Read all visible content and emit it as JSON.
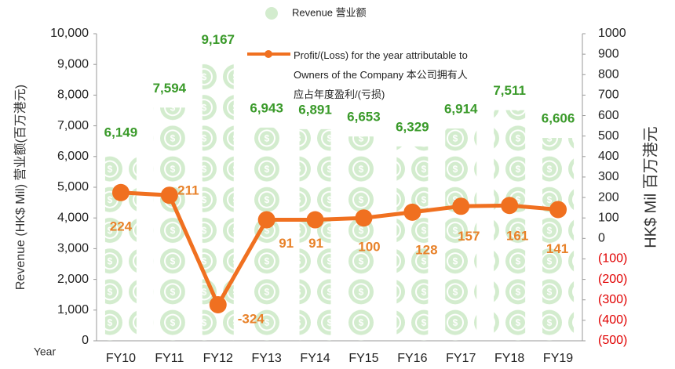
{
  "chart_data": {
    "type": "bar_line",
    "categories": [
      "FY10",
      "FY11",
      "FY12",
      "FY13",
      "FY14",
      "FY15",
      "FY16",
      "FY17",
      "FY18",
      "FY19"
    ],
    "x_label": "Year",
    "y_label": "Revenue (HK$ Mil) 营业额(百万港元)",
    "y2_label": "HK$ Mil 百万港元",
    "ylim": [
      0,
      10000
    ],
    "yticks": [
      0,
      {
        "value": 1000,
        "label": "1,000"
      },
      {
        "value": 2000,
        "label": "2,000"
      },
      {
        "value": 3000,
        "label": "3,000"
      },
      {
        "value": 4000,
        "label": "4,000"
      },
      {
        "value": 5000,
        "label": "5,000"
      },
      {
        "value": 6000,
        "label": "6,000"
      },
      {
        "value": 7000,
        "label": "7,000"
      },
      {
        "value": 8000,
        "label": "8,000"
      },
      {
        "value": 9000,
        "label": "9,000"
      },
      {
        "value": 10000,
        "label": "10,000"
      }
    ],
    "y2lim": [
      -500,
      1000
    ],
    "y2ticks": [
      {
        "value": -500,
        "label": "(500)"
      },
      {
        "value": -400,
        "label": "(400)"
      },
      {
        "value": -300,
        "label": "(300)"
      },
      {
        "value": -200,
        "label": "(200)"
      },
      {
        "value": -100,
        "label": "(100)"
      },
      0,
      100,
      200,
      300,
      400,
      500,
      600,
      700,
      800,
      900,
      1000
    ],
    "negative_tick_color": "#e00000",
    "series": [
      {
        "name": "Revenue 营业额",
        "type": "bar",
        "color": "#c5e3bd",
        "label_color": "#3a9a2a",
        "values": [
          6149,
          7594,
          9167,
          6943,
          6891,
          6653,
          6329,
          6914,
          7511,
          6606
        ],
        "value_labels": [
          "6,149",
          "7,594",
          "9,167",
          "6,943",
          "6,891",
          "6,653",
          "6,329",
          "6,914",
          "7,511",
          "6,606"
        ]
      },
      {
        "name": "Profit/(Loss) for the year attributable to\nOwners of the Company 本公司拥有人\n应占年度盈利/(亏损)",
        "type": "line",
        "axis": "y2",
        "color": "#f07020",
        "label_color": "#e8822a",
        "values": [
          224,
          211,
          -324,
          91,
          91,
          100,
          128,
          157,
          161,
          141
        ]
      }
    ]
  }
}
